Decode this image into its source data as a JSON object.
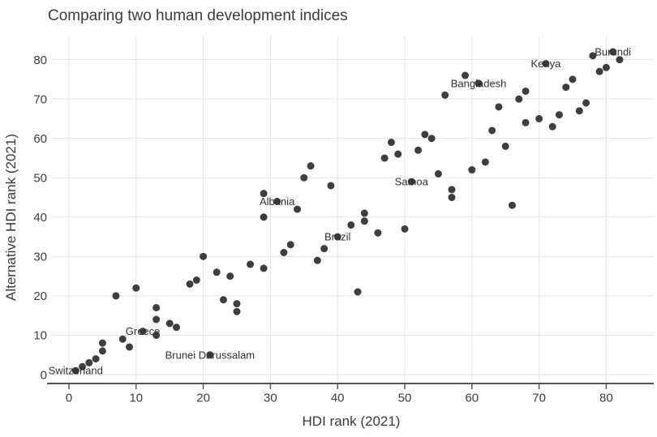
{
  "chart_data": {
    "type": "scatter",
    "title": "Comparing two human development indices",
    "xlabel": "HDI rank (2021)",
    "ylabel": "Alternative HDI rank (2021)",
    "xticks": [
      0,
      10,
      20,
      30,
      40,
      50,
      60,
      70,
      80
    ],
    "yticks": [
      0,
      10,
      20,
      30,
      40,
      50,
      60,
      70,
      80
    ],
    "xlim": [
      -2.5,
      87
    ],
    "ylim": [
      -2.3,
      86
    ],
    "grid": true,
    "legend": false,
    "colors": {
      "point": "#3e3e3e",
      "grid": "#e3e3e3",
      "axis": "#545454",
      "tick_text": "#3d3d3d",
      "text": "#3a3a3a",
      "country_label": "#2e2e2e"
    },
    "points": [
      {
        "x": 1,
        "y": 1,
        "label": "Switzerland"
      },
      {
        "x": 2,
        "y": 2
      },
      {
        "x": 3,
        "y": 3
      },
      {
        "x": 4,
        "y": 4
      },
      {
        "x": 5,
        "y": 6
      },
      {
        "x": 5,
        "y": 8
      },
      {
        "x": 7,
        "y": 20
      },
      {
        "x": 8,
        "y": 9
      },
      {
        "x": 9,
        "y": 7
      },
      {
        "x": 10,
        "y": 22
      },
      {
        "x": 11,
        "y": 11,
        "label": "Greece"
      },
      {
        "x": 13,
        "y": 10
      },
      {
        "x": 13,
        "y": 14
      },
      {
        "x": 13,
        "y": 17
      },
      {
        "x": 15,
        "y": 13
      },
      {
        "x": 16,
        "y": 12
      },
      {
        "x": 18,
        "y": 23
      },
      {
        "x": 19,
        "y": 24
      },
      {
        "x": 20,
        "y": 30
      },
      {
        "x": 21,
        "y": 5,
        "label": "Brunei Darussalam"
      },
      {
        "x": 22,
        "y": 26
      },
      {
        "x": 23,
        "y": 19
      },
      {
        "x": 24,
        "y": 25
      },
      {
        "x": 25,
        "y": 16
      },
      {
        "x": 25,
        "y": 18
      },
      {
        "x": 27,
        "y": 28
      },
      {
        "x": 29,
        "y": 27
      },
      {
        "x": 29,
        "y": 40
      },
      {
        "x": 29,
        "y": 46
      },
      {
        "x": 31,
        "y": 44,
        "label": "Albania"
      },
      {
        "x": 32,
        "y": 31
      },
      {
        "x": 33,
        "y": 33
      },
      {
        "x": 34,
        "y": 42
      },
      {
        "x": 35,
        "y": 50
      },
      {
        "x": 36,
        "y": 53
      },
      {
        "x": 37,
        "y": 29
      },
      {
        "x": 38,
        "y": 32
      },
      {
        "x": 39,
        "y": 48
      },
      {
        "x": 40,
        "y": 35,
        "label": "Brazil"
      },
      {
        "x": 42,
        "y": 38
      },
      {
        "x": 43,
        "y": 21
      },
      {
        "x": 44,
        "y": 39
      },
      {
        "x": 44,
        "y": 41
      },
      {
        "x": 46,
        "y": 36
      },
      {
        "x": 47,
        "y": 55
      },
      {
        "x": 48,
        "y": 59
      },
      {
        "x": 49,
        "y": 56
      },
      {
        "x": 50,
        "y": 37
      },
      {
        "x": 51,
        "y": 49,
        "label": "Samoa"
      },
      {
        "x": 52,
        "y": 57
      },
      {
        "x": 53,
        "y": 61
      },
      {
        "x": 54,
        "y": 60
      },
      {
        "x": 55,
        "y": 51
      },
      {
        "x": 56,
        "y": 71
      },
      {
        "x": 57,
        "y": 45
      },
      {
        "x": 57,
        "y": 47
      },
      {
        "x": 59,
        "y": 76
      },
      {
        "x": 60,
        "y": 52
      },
      {
        "x": 61,
        "y": 74,
        "label": "Bangladesh"
      },
      {
        "x": 62,
        "y": 54
      },
      {
        "x": 63,
        "y": 62
      },
      {
        "x": 64,
        "y": 68
      },
      {
        "x": 65,
        "y": 58
      },
      {
        "x": 66,
        "y": 43
      },
      {
        "x": 67,
        "y": 70
      },
      {
        "x": 68,
        "y": 64
      },
      {
        "x": 68,
        "y": 72
      },
      {
        "x": 70,
        "y": 65
      },
      {
        "x": 71,
        "y": 79,
        "label": "Kenya"
      },
      {
        "x": 72,
        "y": 63
      },
      {
        "x": 73,
        "y": 66
      },
      {
        "x": 74,
        "y": 73
      },
      {
        "x": 75,
        "y": 75
      },
      {
        "x": 76,
        "y": 67
      },
      {
        "x": 77,
        "y": 69
      },
      {
        "x": 78,
        "y": 81
      },
      {
        "x": 79,
        "y": 77
      },
      {
        "x": 80,
        "y": 78
      },
      {
        "x": 81,
        "y": 82,
        "label": "Burundi"
      },
      {
        "x": 82,
        "y": 80
      }
    ]
  }
}
